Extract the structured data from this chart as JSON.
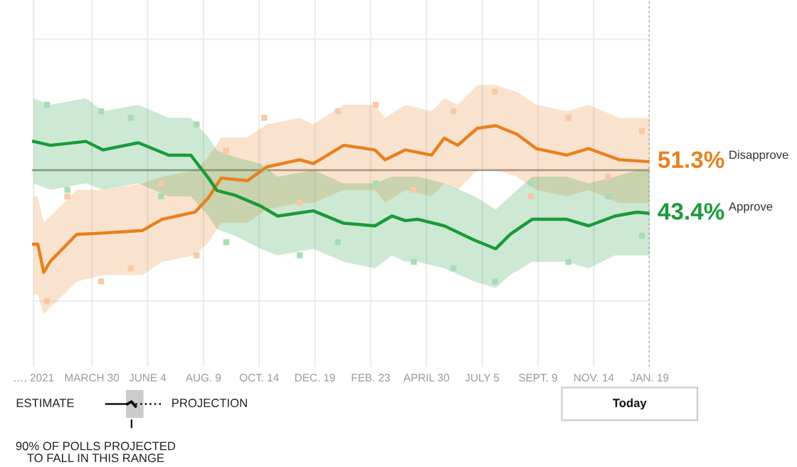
{
  "chart_data": {
    "type": "line",
    "xlim": [
      "2021-01-18",
      "2023-01-19"
    ],
    "ylim": [
      20,
      76
    ],
    "xticks": [
      {
        "value": "2021-01-20",
        "label": "…, 2021"
      },
      {
        "value": "2021-03-30",
        "label": "MARCH 30"
      },
      {
        "value": "2021-06-04",
        "label": "JUNE 4"
      },
      {
        "value": "2021-08-09",
        "label": "AUG. 9"
      },
      {
        "value": "2021-10-14",
        "label": "OCT. 14"
      },
      {
        "value": "2021-12-19",
        "label": "DEC. 19"
      },
      {
        "value": "2022-02-23",
        "label": "FEB. 23"
      },
      {
        "value": "2022-04-30",
        "label": "APRIL 30"
      },
      {
        "value": "2022-07-05",
        "label": "JULY 5"
      },
      {
        "value": "2022-09-09",
        "label": "SEPT. 9"
      },
      {
        "value": "2022-11-14",
        "label": "NOV. 14"
      },
      {
        "value": "2023-01-19",
        "label": "JAN. 19"
      }
    ],
    "yticks": [
      {
        "value": 30,
        "label": null
      },
      {
        "value": 70,
        "label": null
      }
    ],
    "tick_labels": "x",
    "grid": true,
    "legend": false,
    "marker": "none",
    "line_style": "solid",
    "ref_lines": [
      {
        "axis": "y",
        "value": 50,
        "label": null,
        "color": "#999999",
        "line_style": "solid"
      },
      {
        "axis": "x",
        "value": "2023-01-19",
        "label": null,
        "color": "#999999",
        "line_style": "dotted"
      }
    ],
    "series": [
      {
        "type": "scatter",
        "marker": "square",
        "color": "#a8dcb8",
        "x": [
          "2021-02-05",
          "2021-03-01",
          "2021-04-10",
          "2021-05-15",
          "2021-06-20",
          "2021-08-01",
          "2021-09-05",
          "2021-10-20",
          "2021-12-01",
          "2022-01-15",
          "2022-03-01",
          "2022-04-15",
          "2022-06-01",
          "2022-07-20",
          "2022-09-01",
          "2022-10-15",
          "2022-12-01",
          "2023-01-10"
        ],
        "values": [
          60,
          47,
          59,
          58,
          46,
          57,
          39,
          50,
          37,
          39,
          48,
          36,
          35,
          33,
          48,
          36,
          46,
          40
        ]
      },
      {
        "type": "scatter",
        "marker": "square",
        "color": "#f8c9a4",
        "x": [
          "2021-02-05",
          "2021-03-01",
          "2021-04-10",
          "2021-05-15",
          "2021-06-20",
          "2021-08-01",
          "2021-09-05",
          "2021-10-20",
          "2021-12-01",
          "2022-01-15",
          "2022-03-01",
          "2022-04-15",
          "2022-06-01",
          "2022-07-20",
          "2022-09-01",
          "2022-10-15",
          "2022-12-01",
          "2023-01-10"
        ],
        "values": [
          30,
          46,
          33,
          35,
          48,
          37,
          53,
          58,
          45,
          59,
          60,
          47,
          59,
          62,
          46,
          58,
          49,
          56
        ]
      },
      {
        "name": "Disapprove",
        "color": "#e8801e",
        "value_labels": [
          null,
          null,
          null,
          null,
          null,
          null,
          null,
          null,
          null,
          null,
          null,
          null,
          null,
          null,
          null,
          null,
          null,
          null,
          null,
          null,
          null,
          null,
          null,
          null,
          null,
          null,
          null,
          null,
          null,
          "51.3%"
        ],
        "x": [
          "2021-01-20",
          "2021-01-25",
          "2021-02-01",
          "2021-02-09",
          "2021-03-12",
          "2021-04-12",
          "2021-05-29",
          "2021-06-21",
          "2021-07-30",
          "2021-08-15",
          "2021-08-30",
          "2021-09-30",
          "2021-10-23",
          "2021-12-01",
          "2021-12-17",
          "2022-01-22",
          "2022-02-28",
          "2022-03-12",
          "2022-04-05",
          "2022-05-06",
          "2022-05-21",
          "2022-06-06",
          "2022-06-29",
          "2022-07-21",
          "2022-08-15",
          "2022-09-07",
          "2022-10-13",
          "2022-11-08",
          "2022-12-14",
          "2023-01-19"
        ],
        "values": [
          38.7,
          38.7,
          34.4,
          36.1,
          40.2,
          40.4,
          40.8,
          42.5,
          43.6,
          45.8,
          48.8,
          48.4,
          50.5,
          51.6,
          51.0,
          53.8,
          53.1,
          51.6,
          53.1,
          52.3,
          54.9,
          53.8,
          56.4,
          56.8,
          55.5,
          53.3,
          52.3,
          53.3,
          51.6,
          51.3
        ],
        "lower": [
          31,
          31,
          28,
          29,
          33,
          34,
          34,
          36,
          37,
          39,
          42,
          42,
          44,
          45,
          45,
          47,
          47,
          45,
          47,
          46,
          48,
          47,
          50,
          50,
          49,
          47,
          46,
          47,
          45,
          45
        ],
        "upper": [
          46,
          46,
          42,
          43,
          47,
          47,
          48,
          49,
          50,
          52,
          55,
          55,
          57,
          58,
          57,
          60,
          60,
          58,
          60,
          59,
          61,
          60,
          63,
          63,
          62,
          60,
          59,
          60,
          58,
          58
        ]
      },
      {
        "name": "Approve",
        "color": "#1a9a3a",
        "value_labels": [
          null,
          null,
          null,
          null,
          null,
          null,
          null,
          null,
          null,
          null,
          null,
          null,
          null,
          null,
          null,
          null,
          null,
          null,
          null,
          null,
          null,
          null,
          null,
          null,
          null,
          null,
          null,
          "43.4%"
        ],
        "x": [
          "2021-01-20",
          "2021-02-09",
          "2021-03-23",
          "2021-04-12",
          "2021-05-24",
          "2021-06-29",
          "2021-07-25",
          "2021-08-15",
          "2021-08-25",
          "2021-09-15",
          "2021-10-16",
          "2021-11-05",
          "2021-12-17",
          "2022-01-22",
          "2022-02-28",
          "2022-03-20",
          "2022-04-05",
          "2022-04-20",
          "2022-05-21",
          "2022-06-26",
          "2022-07-21",
          "2022-08-07",
          "2022-09-02",
          "2022-10-13",
          "2022-11-08",
          "2022-12-09",
          "2023-01-04",
          "2023-01-19"
        ],
        "values": [
          54.4,
          53.8,
          54.4,
          53.1,
          54.2,
          52.3,
          52.3,
          48.8,
          46.9,
          46.2,
          44.5,
          43.0,
          43.8,
          41.9,
          41.5,
          43.0,
          42.3,
          42.5,
          41.5,
          39.3,
          38.0,
          40.2,
          42.5,
          42.5,
          41.5,
          43.0,
          43.6,
          43.4
        ],
        "lower": [
          48,
          47,
          48,
          47,
          48,
          46,
          46,
          43,
          41,
          40,
          38,
          37,
          38,
          36,
          35,
          37,
          36,
          36,
          35,
          33,
          32,
          34,
          36,
          36,
          35,
          37,
          37,
          37
        ],
        "upper": [
          61,
          60,
          61,
          59,
          60,
          58,
          58,
          55,
          53,
          52,
          51,
          49,
          50,
          48,
          48,
          49,
          49,
          49,
          48,
          46,
          44,
          46,
          49,
          49,
          48,
          49,
          50,
          50
        ]
      }
    ],
    "annotations": [
      "ESTIMATE",
      "PROJECTION",
      "90% OF POLLS PROJECTED\nTO FALL IN THIS RANGE",
      "Today"
    ]
  }
}
